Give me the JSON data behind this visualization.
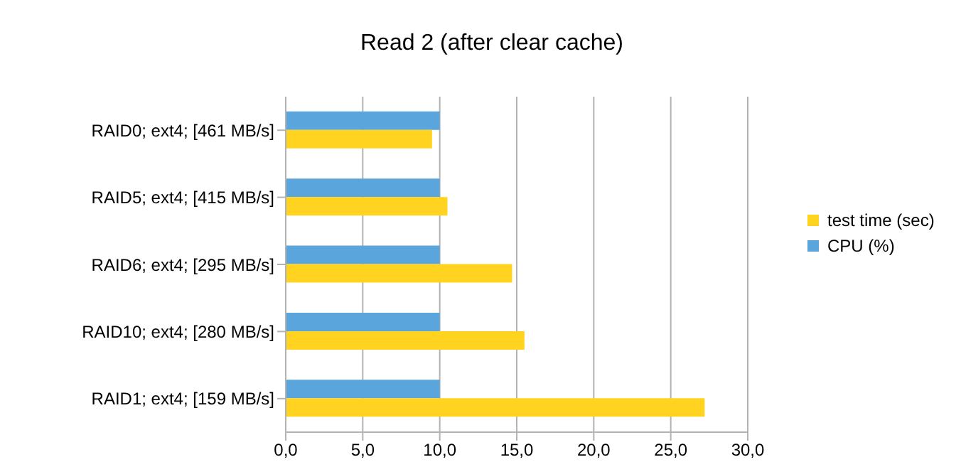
{
  "chart_data": {
    "type": "bar",
    "orientation": "horizontal",
    "title": "Read 2 (after clear cache)",
    "categories": [
      "RAID0; ext4;  [461 MB/s]",
      "RAID5; ext4;  [415 MB/s]",
      "RAID6; ext4;  [295 MB/s]",
      "RAID10; ext4;  [280 MB/s]",
      "RAID1; ext4;  [159 MB/s]"
    ],
    "series": [
      {
        "name": "test time (sec)",
        "color": "#ffd320",
        "values": [
          9.5,
          10.5,
          14.7,
          15.5,
          27.2
        ]
      },
      {
        "name": "CPU (%)",
        "color": "#5aa6dc",
        "values": [
          10.0,
          10.0,
          10.0,
          10.0,
          10.0
        ]
      }
    ],
    "xlim": [
      0,
      30
    ],
    "xticks": [
      {
        "value": 0,
        "label": "0,0"
      },
      {
        "value": 5,
        "label": "5,0"
      },
      {
        "value": 10,
        "label": "10,0"
      },
      {
        "value": 15,
        "label": "15,0"
      },
      {
        "value": 20,
        "label": "20,0"
      },
      {
        "value": 25,
        "label": "25,0"
      },
      {
        "value": 30,
        "label": "30,0"
      }
    ],
    "grid": "x",
    "legend": "right"
  }
}
